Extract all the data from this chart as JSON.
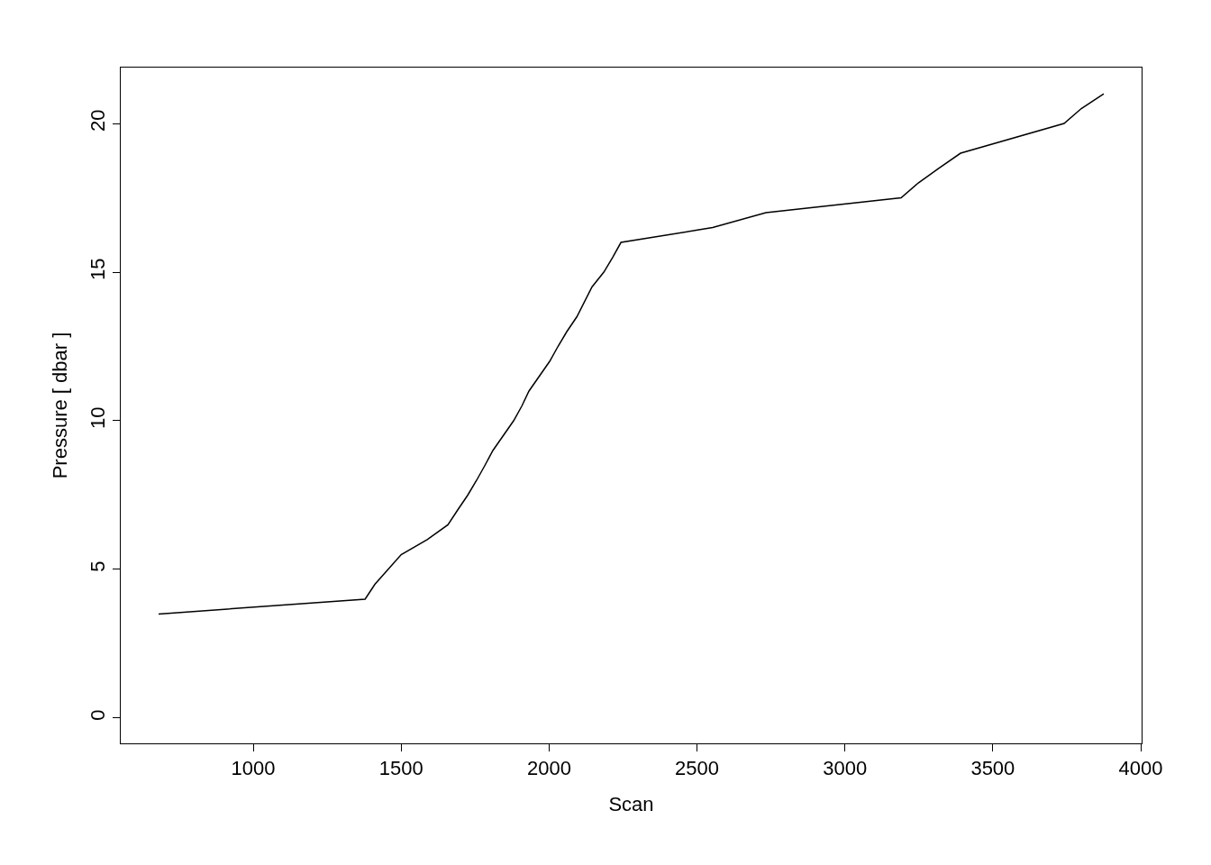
{
  "chart_data": {
    "type": "line",
    "xlabel": "Scan",
    "ylabel": "Pressure [ dbar ]",
    "x": [
      680,
      1378,
      1411,
      1500,
      1588,
      1658,
      1691,
      1725,
      1755,
      1783,
      1810,
      1880,
      1908,
      1932,
      2002,
      2030,
      2060,
      2094,
      2145,
      2185,
      2215,
      2243,
      2553,
      2733,
      3190,
      3248,
      3318,
      3391,
      3741,
      3799,
      3875
    ],
    "series": [
      {
        "color": "#000000",
        "values": [
          3.5,
          4.0,
          4.5,
          5.5,
          6.0,
          6.5,
          7.0,
          7.5,
          8.0,
          8.5,
          9.0,
          10.0,
          10.5,
          11.0,
          12.0,
          12.5,
          13.0,
          13.5,
          14.5,
          15.0,
          15.5,
          16.0,
          16.5,
          17.0,
          17.5,
          18.0,
          18.5,
          19.0,
          20.0,
          20.5,
          21.0
        ]
      }
    ],
    "xlim": [
      552,
      4003
    ],
    "xticks": [
      1000,
      1500,
      2000,
      2500,
      3000,
      3500,
      4000
    ],
    "ylim": [
      -0.85,
      21.88
    ],
    "yticks": [
      0,
      5,
      10,
      15,
      20
    ],
    "legend": false,
    "marker": "none",
    "line_style": "solid"
  }
}
